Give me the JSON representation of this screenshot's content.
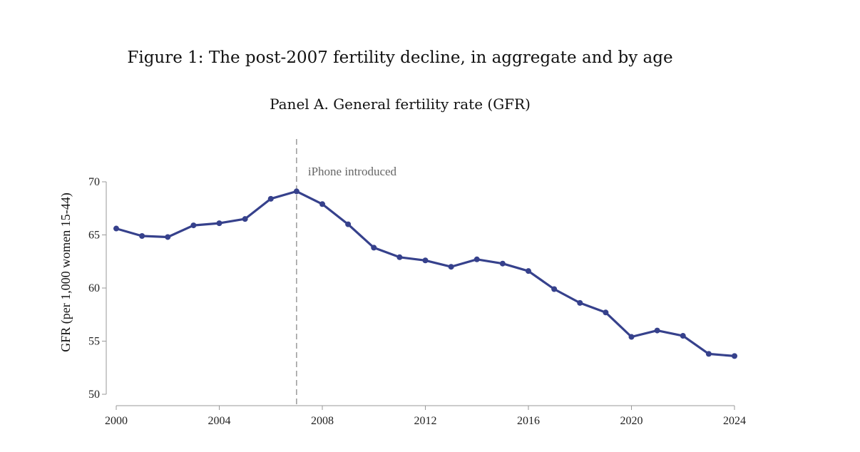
{
  "figure": {
    "title": "Figure 1:  The post-2007 fertility decline, in aggregate and by age",
    "panel_title": "Panel A. General fertility rate (GFR)"
  },
  "chart_data": {
    "type": "line",
    "title": "Panel A. General fertility rate (GFR)",
    "xlabel": "",
    "ylabel": "GFR (per 1,000 women 15-44)",
    "xlim": [
      2000,
      2024
    ],
    "ylim": [
      50,
      70
    ],
    "x_ticks": [
      "2000",
      "2004",
      "2008",
      "2012",
      "2016",
      "2020",
      "2024"
    ],
    "y_ticks": [
      "50",
      "55",
      "60",
      "65",
      "70"
    ],
    "x": [
      2000,
      2001,
      2002,
      2003,
      2004,
      2005,
      2006,
      2007,
      2008,
      2009,
      2010,
      2011,
      2012,
      2013,
      2014,
      2015,
      2016,
      2017,
      2018,
      2019,
      2020,
      2021,
      2022,
      2023,
      2024
    ],
    "series": [
      {
        "values": [
          65.6,
          64.9,
          64.8,
          65.9,
          66.1,
          66.5,
          68.4,
          69.1,
          67.9,
          66.0,
          63.8,
          62.9,
          62.6,
          62.0,
          62.7,
          62.3,
          61.6,
          59.9,
          58.6,
          57.7,
          55.4,
          56.0,
          55.5,
          53.8,
          53.6
        ],
        "color": "#36418c"
      }
    ],
    "annotations": [
      {
        "x": 2007,
        "text": "iPhone introduced",
        "style": "dashed-vertical-line"
      }
    ],
    "grid": false
  }
}
